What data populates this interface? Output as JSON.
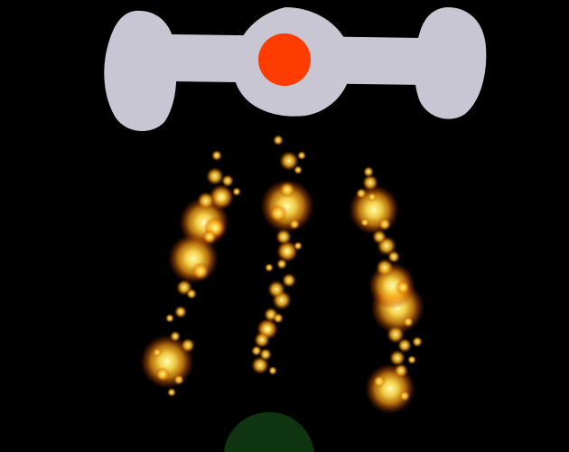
{
  "game": {
    "background_color": "#000000",
    "enemy_ship": {
      "hull_color": "#c8c6d2",
      "core_color": "#ff3c00"
    },
    "player_ship": {
      "color": "#0f3510"
    },
    "fire_columns": [
      {
        "name": "left-fire-column",
        "blob_count": 22
      },
      {
        "name": "middle-fire-column",
        "blob_count": 24
      },
      {
        "name": "right-fire-column",
        "blob_count": 24
      }
    ],
    "fire_colors": {
      "core": "#fffbb0",
      "mid": "#ffc21e",
      "outer": "#d85a00"
    }
  }
}
